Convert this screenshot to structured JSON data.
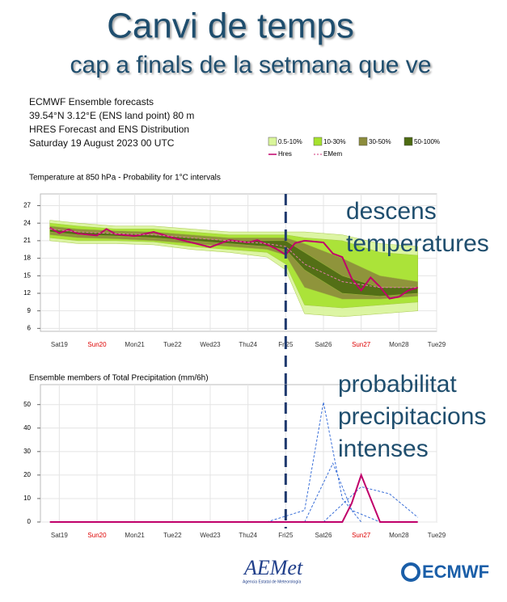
{
  "header": {
    "title": "Canvi de temps",
    "subtitle": "cap a finals de la setmana que ve",
    "info": [
      "ECMWF Ensemble forecasts",
      "39.54°N 3.12°E (ENS land point) 80 m",
      "HRES Forecast and ENS Distribution",
      "Saturday 19 August 2023 00 UTC"
    ]
  },
  "vline": 6.5,
  "annotations": [
    [
      "descens",
      "temperatures"
    ],
    [
      "probabilitat",
      "precipitacions",
      "intenses"
    ]
  ],
  "logos": {
    "aemet": "AEMet",
    "aemet_sub": "Agencia Estatal de Meteorología",
    "ecmwf": "ECMWF"
  },
  "chart_data": [
    {
      "type": "band-line",
      "title": "Temperature at 850 hPa - Probability for 1°C intervals",
      "xlim": [
        0,
        10.5
      ],
      "xticks": [
        {
          "value": 0.5,
          "label": "Sat19",
          "color": "#333"
        },
        {
          "value": 1.5,
          "label": "Sun20",
          "color": "#d00"
        },
        {
          "value": 2.5,
          "label": "Mon21",
          "color": "#333"
        },
        {
          "value": 3.5,
          "label": "Tue22",
          "color": "#333"
        },
        {
          "value": 4.5,
          "label": "Wed23",
          "color": "#333"
        },
        {
          "value": 5.5,
          "label": "Thu24",
          "color": "#333"
        },
        {
          "value": 6.5,
          "label": "Fri25",
          "color": "#333"
        },
        {
          "value": 7.5,
          "label": "Sat26",
          "color": "#333"
        },
        {
          "value": 8.5,
          "label": "Sun27",
          "color": "#d00"
        },
        {
          "value": 9.5,
          "label": "Mon28",
          "color": "#333"
        },
        {
          "value": 10.5,
          "label": "Tue29",
          "color": "#333"
        }
      ],
      "ylim": [
        5.5,
        29
      ],
      "yticks": [
        6,
        9,
        12,
        15,
        18,
        21,
        24,
        27
      ],
      "grid": true,
      "bands": [
        {
          "name": "0.5-10%",
          "color": "#d9f59a",
          "x": [
            0.25,
            1,
            2,
            3,
            4,
            5,
            6,
            6.5,
            7,
            8,
            9,
            10
          ],
          "low": [
            21,
            20.5,
            20.5,
            20.3,
            19.5,
            19,
            18.2,
            16,
            8.5,
            8,
            8.5,
            9
          ],
          "high": [
            24.5,
            24,
            23.5,
            23.5,
            23,
            22.5,
            22.5,
            22.5,
            22.5,
            22,
            20.5,
            20
          ]
        },
        {
          "name": "10-30%",
          "color": "#a6e22e",
          "x": [
            0.25,
            1,
            2,
            3,
            4,
            5,
            6,
            6.5,
            7,
            8,
            9,
            10
          ],
          "low": [
            21.5,
            21,
            21,
            20.8,
            20,
            19.5,
            19,
            17,
            10,
            9.5,
            10,
            10.5
          ],
          "high": [
            24,
            23.5,
            23,
            23,
            22.5,
            22,
            22,
            22,
            21.5,
            21,
            19,
            18.5
          ]
        },
        {
          "name": "30-50%",
          "color": "#8c8c3c",
          "x": [
            0.25,
            1,
            2,
            3,
            4,
            5,
            6,
            6.5,
            7,
            8,
            9,
            10
          ],
          "low": [
            22,
            21.5,
            21.3,
            21,
            20.5,
            20,
            19.5,
            18.5,
            13,
            11,
            11,
            11.5
          ],
          "high": [
            23.5,
            23,
            22.7,
            22.5,
            22,
            21.5,
            21.5,
            21.5,
            20.5,
            18,
            15,
            14
          ]
        },
        {
          "name": "50-100%",
          "color": "#4d6b12",
          "x": [
            0.25,
            1,
            2,
            3,
            4,
            5,
            6,
            6.5,
            7,
            8,
            9,
            10
          ],
          "low": [
            22.5,
            22,
            21.8,
            21.5,
            21,
            20.5,
            20,
            19.5,
            16,
            12,
            11.5,
            12
          ],
          "high": [
            23,
            22.5,
            22.3,
            22,
            21.5,
            21,
            21,
            21,
            19,
            15,
            13,
            13
          ]
        }
      ],
      "series": [
        {
          "name": "Hres",
          "color": "#c0006a",
          "dash": false,
          "x": [
            0.25,
            0.5,
            0.75,
            1,
            1.5,
            1.75,
            2,
            2.5,
            3,
            3.5,
            4,
            4.5,
            5,
            5.5,
            5.75,
            6.25,
            6.5,
            6.75,
            7,
            7.5,
            7.75,
            8,
            8.25,
            8.5,
            8.75,
            9,
            9.25,
            9.5,
            9.75,
            10
          ],
          "values": [
            23.2,
            22.3,
            22.9,
            22.2,
            21.9,
            23,
            22.1,
            21.8,
            22.5,
            21.5,
            20.7,
            19.9,
            21.1,
            20.7,
            21.1,
            19.6,
            18.6,
            20.6,
            21,
            20.7,
            18.8,
            18.2,
            14.5,
            12.5,
            14.7,
            13.1,
            11.1,
            11.4,
            12.5,
            13
          ]
        },
        {
          "name": "EMem",
          "color": "#e07aa8",
          "dash": true,
          "x": [
            0.25,
            1,
            2,
            3,
            4,
            5,
            6,
            6.5,
            7,
            8,
            9,
            10
          ],
          "values": [
            23,
            22.5,
            22.2,
            22,
            21.5,
            21,
            20.5,
            20,
            17,
            14,
            13,
            13
          ]
        }
      ]
    },
    {
      "type": "line",
      "title": "Ensemble members of Total Precipitation (mm/6h)",
      "xlim": [
        0,
        10.5
      ],
      "xticks": [
        {
          "value": 0.5,
          "label": "Sat19",
          "color": "#333"
        },
        {
          "value": 1.5,
          "label": "Sun20",
          "color": "#d00"
        },
        {
          "value": 2.5,
          "label": "Mon21",
          "color": "#333"
        },
        {
          "value": 3.5,
          "label": "Tue22",
          "color": "#333"
        },
        {
          "value": 4.5,
          "label": "Wed23",
          "color": "#333"
        },
        {
          "value": 5.5,
          "label": "Thu24",
          "color": "#333"
        },
        {
          "value": 6.5,
          "label": "Fri25",
          "color": "#333"
        },
        {
          "value": 7.5,
          "label": "Sat26",
          "color": "#333"
        },
        {
          "value": 8.5,
          "label": "Sun27",
          "color": "#d00"
        },
        {
          "value": 9.5,
          "label": "Mon28",
          "color": "#333"
        },
        {
          "value": 10.5,
          "label": "Tue29",
          "color": "#333"
        }
      ],
      "ylim": [
        0,
        58.5
      ],
      "yticks": [
        0,
        10,
        20,
        30,
        40,
        50
      ],
      "grid": true,
      "series": [
        {
          "color": "#3a6fd8",
          "dash": true,
          "x": [
            6,
            7,
            7.5,
            8,
            8.5
          ],
          "values": [
            0,
            5,
            51,
            10,
            0
          ]
        },
        {
          "color": "#3a6fd8",
          "dash": true,
          "x": [
            7,
            7.75,
            8.25,
            9
          ],
          "values": [
            0,
            25,
            5,
            0
          ]
        },
        {
          "color": "#3a6fd8",
          "dash": true,
          "x": [
            7.5,
            8.5,
            9.25,
            10
          ],
          "values": [
            0,
            15,
            12,
            2
          ]
        },
        {
          "color": "#c0006a",
          "dash": false,
          "x": [
            0.25,
            8,
            8.25,
            8.5,
            8.75,
            9,
            10
          ],
          "values": [
            0,
            0,
            8,
            20,
            10,
            0,
            0
          ]
        }
      ]
    }
  ]
}
